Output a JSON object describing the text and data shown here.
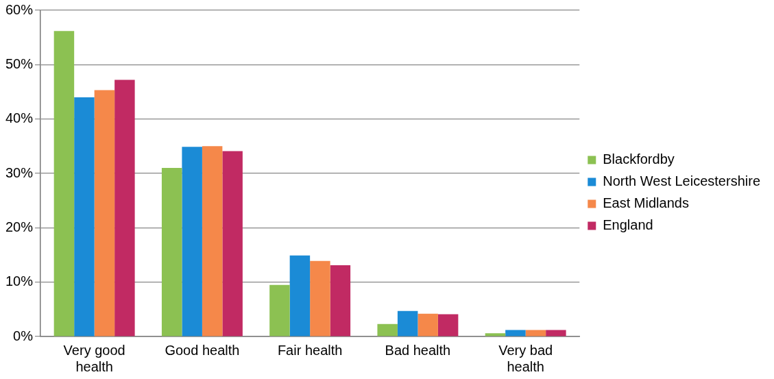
{
  "chart_data": {
    "type": "bar",
    "categories": [
      "Very good health",
      "Good health",
      "Fair health",
      "Bad health",
      "Very bad health"
    ],
    "series": [
      {
        "name": "Blackfordby",
        "color": "#8cc152",
        "values": [
          56.2,
          31.0,
          9.5,
          2.3,
          0.6
        ]
      },
      {
        "name": "North West Leicestershire",
        "color": "#1b8bd6",
        "values": [
          44.0,
          34.9,
          14.9,
          4.7,
          1.2
        ]
      },
      {
        "name": "East Midlands",
        "color": "#f5884a",
        "values": [
          45.3,
          35.0,
          13.9,
          4.2,
          1.2
        ]
      },
      {
        "name": "England",
        "color": "#c12a63",
        "values": [
          47.2,
          34.1,
          13.1,
          4.1,
          1.2
        ]
      }
    ],
    "ylim": [
      0,
      60
    ],
    "yticks": [
      {
        "value": 0,
        "label": "0%"
      },
      {
        "value": 10,
        "label": "10%"
      },
      {
        "value": 20,
        "label": "20%"
      },
      {
        "value": 30,
        "label": "30%"
      },
      {
        "value": 40,
        "label": "40%"
      },
      {
        "value": 50,
        "label": "50%"
      },
      {
        "value": 60,
        "label": "60%"
      }
    ],
    "grid": "y",
    "legend": "right"
  }
}
